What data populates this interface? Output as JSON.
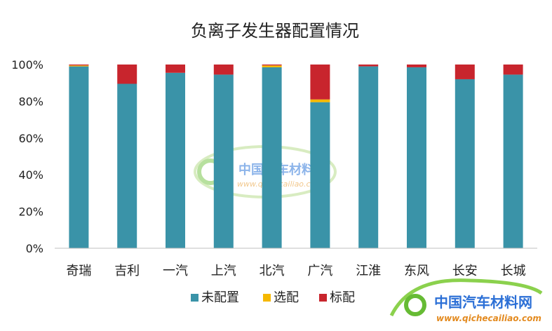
{
  "chart_data": {
    "type": "bar",
    "stacked": true,
    "title": "负离子发生器配置情况",
    "categories": [
      "奇瑞",
      "吉利",
      "一汽",
      "上汽",
      "北汽",
      "广汽",
      "江淮",
      "东风",
      "长安",
      "长城"
    ],
    "series": [
      {
        "name": "未配置",
        "color": "#3A93A8",
        "values": [
          99,
          89.5,
          95.5,
          94.5,
          98.5,
          79.5,
          99,
          98.5,
          92,
          94.5
        ]
      },
      {
        "name": "选配",
        "color": "#F5B800",
        "values": [
          0.5,
          0,
          0,
          0,
          1,
          1.5,
          0,
          0,
          0,
          0
        ]
      },
      {
        "name": "标配",
        "color": "#C8252D",
        "values": [
          0.5,
          10.5,
          4.5,
          5.5,
          0.5,
          19,
          1,
          1.5,
          8,
          5.5
        ]
      }
    ],
    "y_ticks": [
      "0%",
      "20%",
      "40%",
      "60%",
      "80%",
      "100%"
    ],
    "ylim": [
      0,
      100
    ],
    "grid": false,
    "legend_position": "bottom"
  },
  "watermark": {
    "center_cn": "中国汽车材料网",
    "center_url": "www.qichecailiao.com",
    "corner_cn": "中国汽车材料网",
    "corner_url": "www.qichecailiao.com"
  }
}
